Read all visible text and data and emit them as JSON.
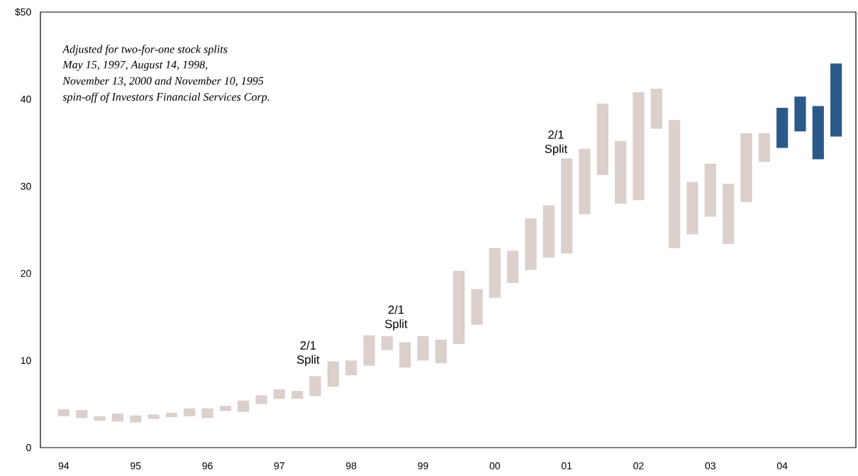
{
  "chart_data": {
    "type": "bar",
    "categories": [
      "94",
      null,
      null,
      null,
      "95",
      null,
      null,
      null,
      "96",
      null,
      null,
      null,
      "97",
      null,
      null,
      null,
      "98",
      null,
      null,
      null,
      "99",
      null,
      null,
      null,
      "00",
      null,
      null,
      null,
      "01",
      null,
      null,
      null,
      "02",
      null,
      null,
      null,
      "03",
      null,
      null,
      null,
      "04",
      null,
      null,
      null
    ],
    "base": [
      3.6,
      3.4,
      3.1,
      3.0,
      2.9,
      3.3,
      3.5,
      3.6,
      3.4,
      4.2,
      4.1,
      5.0,
      5.6,
      5.6,
      5.9,
      7.0,
      8.3,
      9.4,
      11.2,
      9.2,
      10.0,
      9.7,
      11.9,
      14.1,
      17.2,
      18.9,
      20.4,
      21.8,
      22.3,
      26.8,
      31.3,
      28.0,
      28.4,
      36.6,
      22.9,
      24.5,
      26.5,
      23.4,
      28.2,
      32.8,
      34.4,
      36.3,
      33.1,
      35.7
    ],
    "values": [
      0.8,
      0.9,
      0.5,
      0.9,
      0.8,
      0.5,
      0.5,
      0.9,
      1.1,
      0.6,
      1.3,
      1.0,
      1.1,
      0.9,
      2.3,
      2.9,
      1.7,
      3.5,
      1.6,
      2.9,
      2.8,
      2.7,
      8.4,
      4.1,
      5.7,
      3.7,
      5.9,
      6.0,
      10.9,
      7.5,
      8.2,
      7.2,
      12.4,
      4.6,
      14.7,
      6.0,
      6.1,
      6.9,
      7.9,
      3.3,
      4.6,
      4.0,
      6.1,
      8.4
    ],
    "colors": [
      "#dbd0cb",
      "#dbd0cb",
      "#dbd0cb",
      "#dbd0cb",
      "#dbd0cb",
      "#dbd0cb",
      "#dbd0cb",
      "#dbd0cb",
      "#dbd0cb",
      "#dbd0cb",
      "#dbd0cb",
      "#dbd0cb",
      "#dbd0cb",
      "#dbd0cb",
      "#dbd0cb",
      "#dbd0cb",
      "#dbd0cb",
      "#dbd0cb",
      "#dbd0cb",
      "#dbd0cb",
      "#dbd0cb",
      "#dbd0cb",
      "#dbd0cb",
      "#dbd0cb",
      "#dbd0cb",
      "#dbd0cb",
      "#dbd0cb",
      "#dbd0cb",
      "#dbd0cb",
      "#dbd0cb",
      "#dbd0cb",
      "#dbd0cb",
      "#dbd0cb",
      "#dbd0cb",
      "#dbd0cb",
      "#dbd0cb",
      "#dbd0cb",
      "#dbd0cb",
      "#dbd0cb",
      "#dbd0cb",
      "#2b5a8a",
      "#2b5a8a",
      "#2b5a8a",
      "#2b5a8a"
    ],
    "ylim": [
      0,
      50
    ],
    "yticks": [
      0,
      10,
      20,
      30,
      40,
      {
        "value": 50,
        "label": "$50"
      }
    ],
    "grid": false,
    "annotations": [
      "Adjusted for two-for-one stock splits",
      "May 15, 1997, August 14, 1998,",
      "November 13, 2000 and November 10, 1995",
      "spin-off of Investors Financial Services Corp.",
      "2/1 Split",
      "2/1 Split",
      "2/1 Split"
    ]
  }
}
